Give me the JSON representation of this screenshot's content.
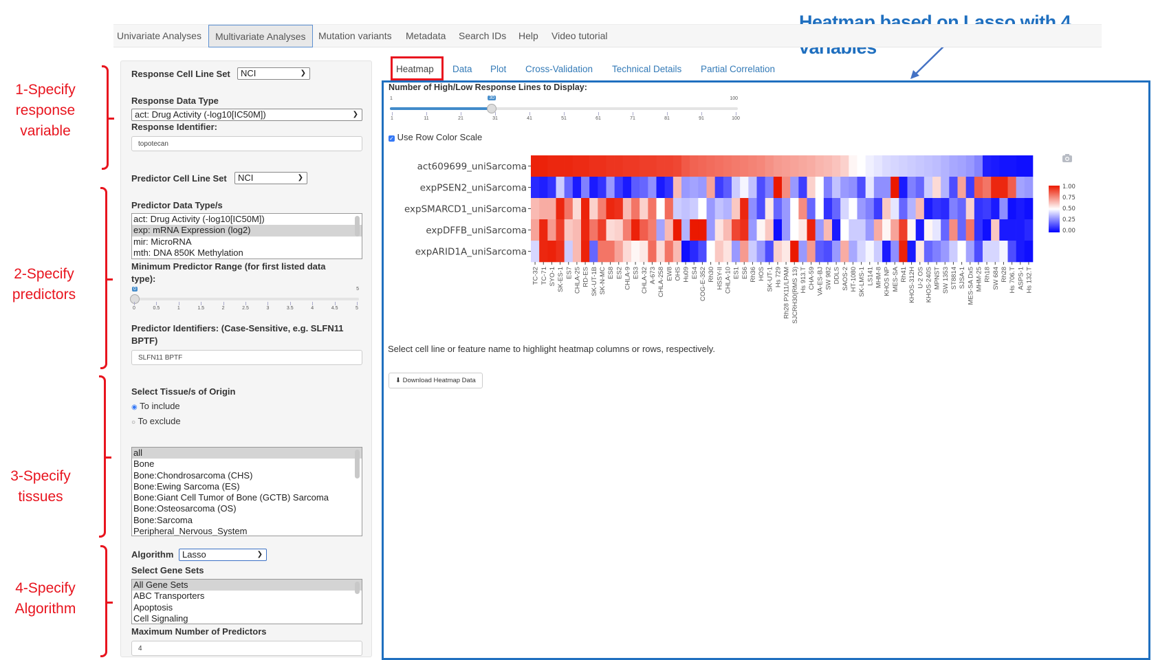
{
  "annotation": {
    "title_line1": "Heatmap based on Lasso with 4",
    "title_line2": "variables",
    "steps": [
      {
        "line1": "1-Specify",
        "line2": "response",
        "line3": "variable"
      },
      {
        "line1": "2-Specify",
        "line2": "predictors"
      },
      {
        "line1": "3-Specify",
        "line2": "tissues"
      },
      {
        "line1": "4-Specify",
        "line2": "Algorithm"
      }
    ],
    "color": "#e8141e",
    "box_color": "#1f6fbf"
  },
  "nav": {
    "tabs": [
      "Univariate Analyses",
      "Multivariate Analyses",
      "Mutation variants",
      "Metadata",
      "Search IDs",
      "Help",
      "Video tutorial"
    ],
    "active": "Multivariate Analyses"
  },
  "sidebar": {
    "response_cell_line_set_label": "Response Cell Line Set",
    "response_cell_line_set_value": "NCI",
    "response_data_type_label": "Response Data Type",
    "response_data_type_value": "act: Drug Activity (-log10[IC50M])",
    "response_identifier_label": "Response Identifier:",
    "response_identifier_value": "topotecan",
    "predictor_cell_line_set_label": "Predictor Cell Line Set",
    "predictor_cell_line_set_value": "NCI",
    "predictor_data_types_label": "Predictor Data Type/s",
    "predictor_data_types": [
      "act: Drug Activity (-log10[IC50M])",
      "exp: mRNA Expression (log2)",
      "mir: MicroRNA",
      "mth: DNA 850K Methylation"
    ],
    "predictor_data_types_selected": 1,
    "min_range_label_1": "Minimum Predictor Range (for first listed data",
    "min_range_label_2": "type):",
    "min_range_value": "0",
    "min_range_max": "5",
    "min_range_ticks": [
      "0",
      "0.5",
      "1",
      "1.5",
      "2",
      "2.5",
      "3",
      "3.5",
      "4",
      "4.5",
      "5"
    ],
    "predictor_ids_label_1": "Predictor Identifiers: (Case-Sensitive, e.g. SLFN11",
    "predictor_ids_label_2": "BPTF)",
    "predictor_ids_value": "SLFN11 BPTF",
    "tissue_label": "Select Tissue/s of Origin",
    "tissue_include": "To include",
    "tissue_exclude": "To exclude",
    "tissues": [
      "all",
      "Bone",
      "Bone:Chondrosarcoma (CHS)",
      "Bone:Ewing Sarcoma (ES)",
      "Bone:Giant Cell Tumor of Bone (GCTB) Sarcoma",
      "Bone:Osteosarcoma (OS)",
      "Bone:Sarcoma",
      "Peripheral_Nervous_System"
    ],
    "algorithm_label": "Algorithm",
    "algorithm_value": "Lasso",
    "gene_sets_label": "Select Gene Sets",
    "gene_sets": [
      "All Gene Sets",
      "ABC Transporters",
      "Apoptosis",
      "Cell Signaling"
    ],
    "max_predictors_label": "Maximum Number of Predictors",
    "max_predictors_value": "4"
  },
  "subtabs": [
    "Heatmap",
    "Data",
    "Plot",
    "Cross-Validation",
    "Technical Details",
    "Partial Correlation"
  ],
  "main": {
    "slider_label": "Number of High/Low Response Lines to Display:",
    "slider_min": "1",
    "slider_max": "100",
    "slider_value": "30",
    "slider_value_fraction": 0.293,
    "slider_ticks": [
      "1",
      "11",
      "21",
      "31",
      "41",
      "51",
      "61",
      "71",
      "81",
      "91",
      "100"
    ],
    "row_color_scale_label": "Use Row Color Scale",
    "row_color_scale_checked": true,
    "hint": "Select cell line or feature name to highlight heatmap columns or rows, respectively.",
    "download_label": "Download Heatmap Data"
  },
  "chart_data": {
    "type": "heatmap",
    "rows": [
      "act609699_uniSarcoma",
      "expPSEN2_uniSarcoma",
      "expSMARCD1_uniSarcoma",
      "expDFFB_uniSarcoma",
      "expARID1A_uniSarcoma"
    ],
    "columns": [
      "TC-32",
      "TC-71",
      "SYO-1",
      "SK-ES-1",
      "ES7",
      "CHLA-25",
      "RD-ES",
      "SK-UT-1B",
      "SK-N-MC",
      "ES8",
      "ES2",
      "CHLA-9",
      "ES3",
      "CHLA-32",
      "A-673",
      "CHLA-258",
      "EW8",
      "OHS",
      "Hu09",
      "ES4",
      "COG-E-352",
      "Rh30",
      "HSSY-II",
      "CHLA-10",
      "ES1",
      "ES6",
      "Rh36",
      "HOS",
      "SK-UT-1",
      "Hs 729",
      "Rh28 PX11/LPAM",
      "SJCRH30(RMS 13)",
      "Hs 913.T",
      "CHA-59",
      "VA-ES-BJ",
      "SW 982",
      "DDLS",
      "SAOS-2",
      "HT-1080",
      "SK-LMS-1",
      "LS141",
      "MHM-8",
      "KHOS NP",
      "MES-SA",
      "Rh41",
      "KHOS-312H",
      "U-2 OS",
      "KHOS-240S",
      "MPNST",
      "SW 1353",
      "ST8814",
      "SJSA-1",
      "MES-SA Dx5",
      "MHM-25",
      "Rh18",
      "SW 684",
      "Rh28",
      "Hs 706.T",
      "ASPS-1",
      "Hs 132.T"
    ],
    "values": [
      [
        0.98,
        0.98,
        0.97,
        0.97,
        0.97,
        0.96,
        0.96,
        0.95,
        0.95,
        0.94,
        0.94,
        0.93,
        0.93,
        0.92,
        0.92,
        0.91,
        0.91,
        0.9,
        0.86,
        0.84,
        0.83,
        0.82,
        0.81,
        0.8,
        0.79,
        0.78,
        0.77,
        0.76,
        0.74,
        0.72,
        0.71,
        0.7,
        0.69,
        0.68,
        0.66,
        0.65,
        0.63,
        0.6,
        0.52,
        0.5,
        0.47,
        0.45,
        0.43,
        0.42,
        0.41,
        0.4,
        0.39,
        0.38,
        0.37,
        0.35,
        0.33,
        0.32,
        0.3,
        0.26,
        0.06,
        0.05,
        0.04,
        0.04,
        0.03,
        0.03
      ],
      [
        0.08,
        0.06,
        0.1,
        0.4,
        0.2,
        0.05,
        0.25,
        0.05,
        0.1,
        0.3,
        0.12,
        0.05,
        0.18,
        0.2,
        0.28,
        0.05,
        0.1,
        0.65,
        0.3,
        0.32,
        0.3,
        0.7,
        0.12,
        0.18,
        0.4,
        0.48,
        0.38,
        0.15,
        0.25,
        1.0,
        0.75,
        0.3,
        0.12,
        0.6,
        0.5,
        0.25,
        0.38,
        0.3,
        0.28,
        0.15,
        0.45,
        0.28,
        0.28,
        1.0,
        0.05,
        0.25,
        0.2,
        0.4,
        0.58,
        0.35,
        0.15,
        0.7,
        0.12,
        0.85,
        0.8,
        0.97,
        0.97,
        0.85,
        0.32,
        0.3
      ],
      [
        0.65,
        0.68,
        0.68,
        0.97,
        0.8,
        0.58,
        0.98,
        0.6,
        0.78,
        0.97,
        0.95,
        0.65,
        0.8,
        0.6,
        0.8,
        0.5,
        0.82,
        0.4,
        0.38,
        0.4,
        0.5,
        0.3,
        0.38,
        0.35,
        0.62,
        0.97,
        0.28,
        0.15,
        0.55,
        0.2,
        0.3,
        0.5,
        0.75,
        0.2,
        0.5,
        0.1,
        0.2,
        0.42,
        0.5,
        0.3,
        0.25,
        0.12,
        0.62,
        0.45,
        0.2,
        0.35,
        0.65,
        0.05,
        0.1,
        0.08,
        0.25,
        0.2,
        0.6,
        0.1,
        0.12,
        0.05,
        0.28,
        0.03,
        0.05,
        0.03
      ],
      [
        0.7,
        0.97,
        0.72,
        0.92,
        0.62,
        0.65,
        0.97,
        0.8,
        0.92,
        0.58,
        0.6,
        0.78,
        0.98,
        0.85,
        0.78,
        0.32,
        0.65,
        1.0,
        0.35,
        1.0,
        1.0,
        0.3,
        0.56,
        0.65,
        0.9,
        0.95,
        0.3,
        0.52,
        0.62,
        0.03,
        0.3,
        0.5,
        0.55,
        0.98,
        0.3,
        0.65,
        0.05,
        0.5,
        0.4,
        0.4,
        0.3,
        0.68,
        0.52,
        0.7,
        0.92,
        0.52,
        0.05,
        0.52,
        0.45,
        0.2,
        0.75,
        0.2,
        0.8,
        0.1,
        0.03,
        0.62,
        0.05,
        0.05,
        0.05,
        0.08
      ],
      [
        0.42,
        0.97,
        0.98,
        0.95,
        0.4,
        0.65,
        0.98,
        0.2,
        0.8,
        0.8,
        0.7,
        0.58,
        0.52,
        0.55,
        0.82,
        0.58,
        0.8,
        0.65,
        0.03,
        0.08,
        0.15,
        0.5,
        0.62,
        0.56,
        0.3,
        0.72,
        0.4,
        0.3,
        0.15,
        0.6,
        0.55,
        1.0,
        0.3,
        0.72,
        0.18,
        0.15,
        0.3,
        0.68,
        0.33,
        0.42,
        0.48,
        0.4,
        0.05,
        0.28,
        0.98,
        0.05,
        0.55,
        0.2,
        0.25,
        0.3,
        0.4,
        0.5,
        0.32,
        0.15,
        0.42,
        0.42,
        0.48,
        0.15,
        0.05,
        0.03
      ]
    ],
    "colorscale": {
      "low": "#0000ff",
      "mid": "#ffffff",
      "high": "#eb1900"
    },
    "zlim": [
      0,
      1
    ],
    "colorbar_ticks": [
      "1.00",
      "0.75",
      "0.50",
      "0.25",
      "0.00"
    ],
    "legend": "right"
  }
}
